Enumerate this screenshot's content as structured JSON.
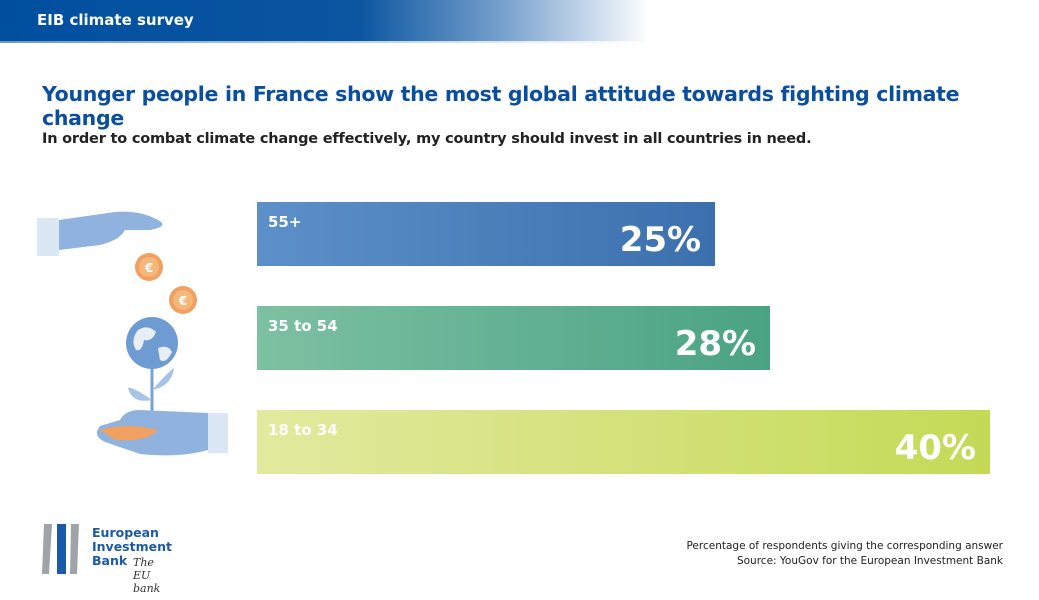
{
  "header": {
    "banner": "EIB climate survey"
  },
  "title": "Younger people in France show the most global attitude towards fighting climate change",
  "subtitle": "In order to combat climate change effectively, my country should invest in all countries in need.",
  "chart_data": {
    "type": "bar",
    "orientation": "horizontal",
    "categories": [
      "55+",
      "35 to 54",
      "18 to 34"
    ],
    "values": [
      25,
      28,
      40
    ],
    "value_labels": [
      "25%",
      "28%",
      "40%"
    ],
    "colors": [
      [
        "#5d90c9",
        "#3b70ae"
      ],
      [
        "#7dc0a2",
        "#4aa384"
      ],
      [
        "#e2ea9f",
        "#c4da56"
      ]
    ],
    "xlim": [
      0,
      40
    ],
    "grid": false
  },
  "footer": {
    "note": "Percentage of respondents giving the corresponding answer",
    "source": "Source: YouGov for the European Investment Bank"
  },
  "logo": {
    "line1": "European",
    "line2": "Investment",
    "line3": "Bank",
    "tagline": "The EU bank"
  },
  "illustration": {
    "icons": [
      "hand-giving-icon",
      "euro-coin-icon",
      "globe-plant-icon",
      "hand-receiving-icon"
    ]
  }
}
